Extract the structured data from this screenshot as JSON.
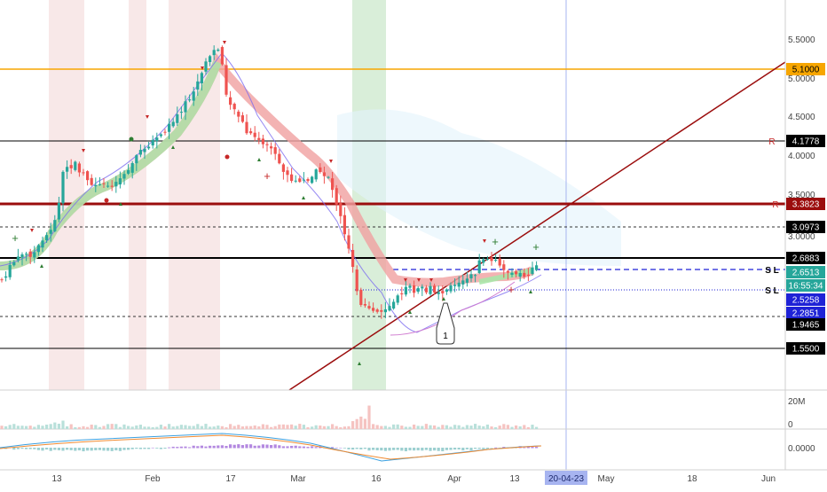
{
  "symbol": "",
  "price_axis": {
    "ticks": [
      "5.5000",
      "5.0000",
      "4.5000",
      "4.0000",
      "3.5000",
      "3.0000"
    ]
  },
  "price_tags": [
    {
      "value": "5.1000",
      "bg": "#f7a600",
      "fg": "#000000"
    },
    {
      "value": "4.1778",
      "bg": "#000000",
      "fg": "#ffffff"
    },
    {
      "value": "3.3823",
      "bg": "#9b0d0d",
      "fg": "#ffffff"
    },
    {
      "value": "3.0973",
      "bg": "#000000",
      "fg": "#ffffff"
    },
    {
      "value": "2.6883",
      "bg": "#000000",
      "fg": "#ffffff"
    },
    {
      "value": "2.6513",
      "bg": "#26a69a",
      "fg": "#ffffff"
    },
    {
      "value": "16:55:34",
      "bg": "#26a69a",
      "fg": "#ffffff"
    },
    {
      "value": "2.5258",
      "bg": "#1e22d6",
      "fg": "#ffffff"
    },
    {
      "value": "2.2851",
      "bg": "#1e22d6",
      "fg": "#ffffff"
    },
    {
      "value": "1.9465",
      "bg": "#000000",
      "fg": "#ffffff"
    },
    {
      "value": "1.5500",
      "bg": "#000000",
      "fg": "#ffffff"
    }
  ],
  "line_labels": {
    "r_label": "R",
    "r2_label": "R",
    "sl_label": "S L",
    "sl2_label": "S L"
  },
  "callout": "1",
  "volume_axis": {
    "top": "20M",
    "bottom": "0"
  },
  "macd_axis": {
    "zero": "0.0000"
  },
  "time_axis": {
    "labels": [
      "13",
      "Feb",
      "17",
      "Mar",
      "16",
      "Apr",
      "13",
      "May",
      "18",
      "Jun"
    ],
    "crosshair_date": "20-04-23"
  },
  "colors": {
    "bull": "#26a69a",
    "bear": "#ef5350",
    "resistance": "#9b0d0d",
    "orange": "#f7a600",
    "blue": "#1e22d6"
  }
}
